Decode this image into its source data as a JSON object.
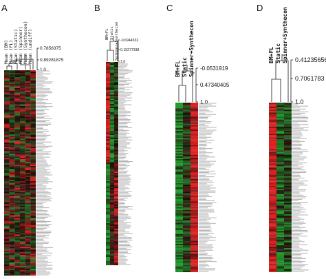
{
  "figure": {
    "panels": [
      {
        "id": "A",
        "columns": [
          "Mean (BM)",
          "Mean (FL)",
          "Mean (Static)",
          "Mean (Spinner)",
          "Mean (Synthecon)",
          "Mean (undiff)"
        ],
        "similarity_labels": [
          "0.7856375",
          "0.89281875",
          "1.0"
        ]
      },
      {
        "id": "B",
        "columns": [
          "BM+FL",
          "Static",
          "Spinner+Synthecon"
        ],
        "similarity_labels": [
          "-0.6944532",
          "0.15277338",
          "1.0"
        ]
      },
      {
        "id": "C",
        "columns": [
          "BM+FL",
          "Static",
          "Spinner+Synthecon"
        ],
        "similarity_labels": [
          "-0.0531919",
          "0.47340405",
          "1.0"
        ]
      },
      {
        "id": "D",
        "columns": [
          "BM+FL",
          "Static",
          "Spinner+Synthecon"
        ],
        "similarity_labels": [
          "0.41235656",
          "0.7061783",
          "1.0"
        ]
      }
    ],
    "colors": {
      "high": "#e02020",
      "low": "#1f9a2a",
      "neutral": "#1a0a0a"
    }
  }
}
